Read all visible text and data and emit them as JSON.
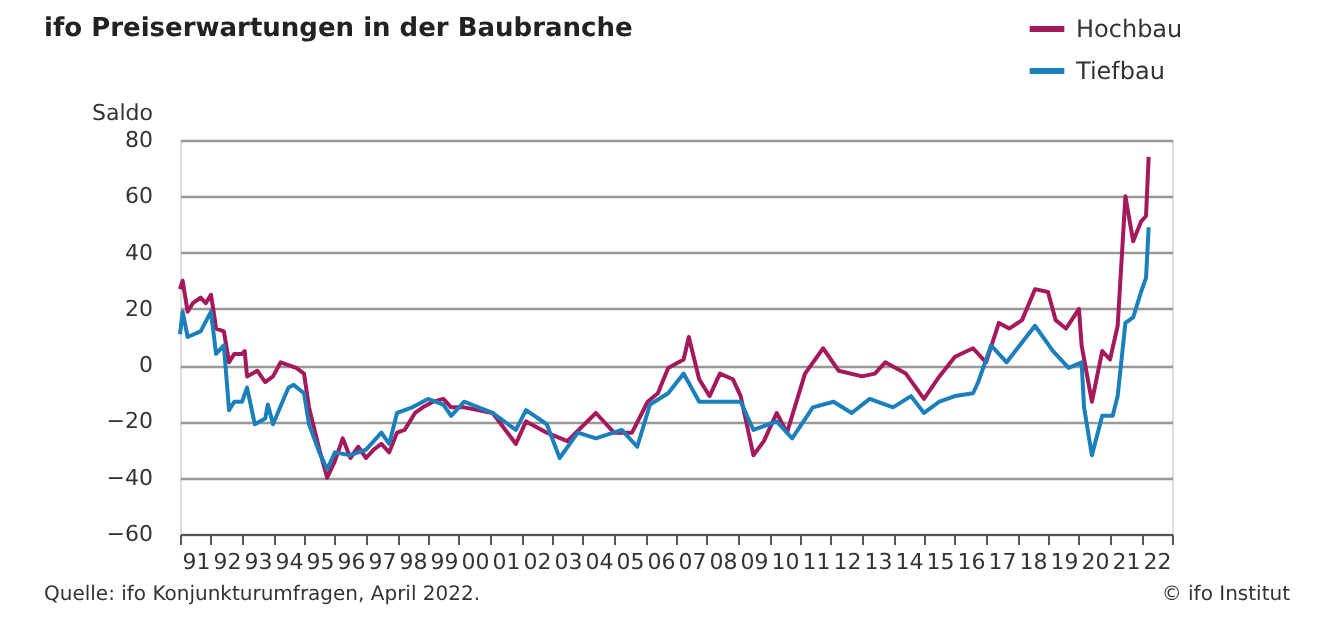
{
  "chart_data": {
    "type": "line",
    "title": "ifo Preiserwartungen in der Baubranche",
    "ylabel": "Saldo",
    "annotations": [
      "Quelle: ifo Konjunkturumfragen, April 2022.",
      "© ifo Institut"
    ],
    "series": [
      {
        "name": "Hochbau",
        "color": "#a3195b",
        "x": [
          "1991-01",
          "1991-02",
          "1991-04",
          "1991-06",
          "1991-09",
          "1991-11",
          "1992-01",
          "1992-02",
          "1992-03",
          "1992-06",
          "1992-08",
          "1992-10",
          "1993-01",
          "1993-02",
          "1993-03",
          "1993-07",
          "1993-10",
          "1994-01",
          "1994-04",
          "1994-10",
          "1995-01",
          "1995-03",
          "1995-07",
          "1995-10",
          "1996-01",
          "1996-04",
          "1996-07",
          "1996-10",
          "1997-01",
          "1997-04",
          "1997-07",
          "1997-10",
          "1998-01",
          "1998-04",
          "1998-08",
          "1998-11",
          "1999-03",
          "1999-07",
          "1999-10",
          "2000-03",
          "2001-02",
          "2001-11",
          "2002-03",
          "2002-11",
          "2003-07",
          "2004-06",
          "2005-01",
          "2005-08",
          "2006-02",
          "2006-06",
          "2006-10",
          "2007-04",
          "2007-06",
          "2007-10",
          "2008-02",
          "2008-06",
          "2008-11",
          "2009-02",
          "2009-07",
          "2009-11",
          "2010-04",
          "2010-08",
          "2011-03",
          "2011-10",
          "2012-04",
          "2013-01",
          "2013-06",
          "2013-10",
          "2014-06",
          "2015-01",
          "2015-07",
          "2016-01",
          "2016-08",
          "2017-01",
          "2017-06",
          "2017-10",
          "2018-03",
          "2018-08",
          "2019-01",
          "2019-04",
          "2019-08",
          "2020-01",
          "2020-02",
          "2020-06",
          "2020-10",
          "2021-01",
          "2021-04",
          "2021-07",
          "2021-10",
          "2022-01",
          "2022-03",
          "2022-04"
        ],
        "values": [
          27,
          30,
          19,
          22,
          24,
          22,
          25,
          19,
          13,
          12,
          1,
          4,
          4,
          5,
          -4,
          -2,
          -6,
          -4,
          1,
          -1,
          -3,
          -15,
          -30,
          -40,
          -34,
          -26,
          -33,
          -29,
          -33,
          -30,
          -28,
          -31,
          -24,
          -23,
          -17,
          -15,
          -13,
          -12,
          -15,
          -15,
          -17,
          -28,
          -20,
          -24,
          -27,
          -17,
          -24,
          -24,
          -13,
          -10,
          -1,
          2,
          10,
          -5,
          -11,
          -3,
          -5,
          -11,
          -32,
          -27,
          -17,
          -24,
          -3,
          6,
          -2,
          -4,
          -3,
          1,
          -3,
          -12,
          -4,
          3,
          6,
          1,
          15,
          13,
          16,
          27,
          26,
          16,
          13,
          20,
          7,
          -13,
          5,
          2,
          14,
          60,
          44,
          51,
          53,
          74
        ]
      },
      {
        "name": "Tiefbau",
        "color": "#1a7fba",
        "x": [
          "1991-01",
          "1991-02",
          "1991-04",
          "1991-09",
          "1992-01",
          "1992-03",
          "1992-06",
          "1992-08",
          "1992-10",
          "1993-01",
          "1993-03",
          "1993-06",
          "1993-10",
          "1993-11",
          "1994-01",
          "1994-07",
          "1994-09",
          "1995-01",
          "1995-03",
          "1995-07",
          "1995-10",
          "1996-01",
          "1996-07",
          "1997-01",
          "1997-07",
          "1997-10",
          "1998-01",
          "1998-07",
          "1999-01",
          "1999-07",
          "1999-10",
          "2000-03",
          "2001-02",
          "2001-11",
          "2002-03",
          "2002-11",
          "2003-04",
          "2003-11",
          "2004-06",
          "2005-04",
          "2005-10",
          "2006-03",
          "2006-10",
          "2007-04",
          "2007-10",
          "2008-08",
          "2009-02",
          "2009-07",
          "2010-04",
          "2010-10",
          "2011-06",
          "2012-02",
          "2012-09",
          "2013-04",
          "2014-01",
          "2014-08",
          "2015-01",
          "2015-07",
          "2016-01",
          "2016-08",
          "2016-10",
          "2017-03",
          "2017-09",
          "2018-02",
          "2018-08",
          "2019-03",
          "2019-09",
          "2020-02",
          "2020-03",
          "2020-06",
          "2020-10",
          "2021-02",
          "2021-04",
          "2021-07",
          "2021-10",
          "2022-01",
          "2022-03",
          "2022-04"
        ],
        "values": [
          11,
          19,
          10,
          12,
          19,
          4,
          7,
          -16,
          -13,
          -13,
          -8,
          -21,
          -19,
          -14,
          -21,
          -8,
          -7,
          -10,
          -21,
          -31,
          -37,
          -31,
          -32,
          -30,
          -24,
          -28,
          -17,
          -15,
          -12,
          -14,
          -18,
          -13,
          -17,
          -23,
          -16,
          -21,
          -33,
          -24,
          -26,
          -23,
          -29,
          -14,
          -10,
          -3,
          -13,
          -13,
          -13,
          -23,
          -20,
          -26,
          -15,
          -13,
          -17,
          -12,
          -15,
          -11,
          -17,
          -13,
          -11,
          -10,
          -6,
          7,
          1,
          7,
          14,
          5,
          -1,
          1,
          -15,
          -32,
          -18,
          -18,
          -11,
          15,
          17,
          26,
          31,
          49
        ]
      }
    ],
    "xlim": [
      "1991-01-01",
      "2023-01-01"
    ],
    "xticks": [
      {
        "value": "1991-01-01",
        "label": null
      },
      {
        "value": "1992-01-01",
        "label": null
      },
      {
        "value": "1993-01-01",
        "label": null
      },
      {
        "value": "1994-01-01",
        "label": null
      },
      {
        "value": "1995-01-01",
        "label": null
      },
      {
        "value": "1996-01-01",
        "label": null
      },
      {
        "value": "1997-01-01",
        "label": null
      },
      {
        "value": "1998-01-01",
        "label": null
      },
      {
        "value": "1999-01-01",
        "label": null
      },
      {
        "value": "2000-01-01",
        "label": null
      },
      {
        "value": "2001-01-01",
        "label": null
      },
      {
        "value": "2002-01-01",
        "label": null
      },
      {
        "value": "2003-01-01",
        "label": null
      },
      {
        "value": "2004-01-01",
        "label": null
      },
      {
        "value": "2005-01-01",
        "label": null
      },
      {
        "value": "2006-01-01",
        "label": null
      },
      {
        "value": "2007-01-01",
        "label": null
      },
      {
        "value": "2008-01-01",
        "label": null
      },
      {
        "value": "2009-01-01",
        "label": null
      },
      {
        "value": "2010-01-01",
        "label": null
      },
      {
        "value": "2011-01-01",
        "label": null
      },
      {
        "value": "2012-01-01",
        "label": null
      },
      {
        "value": "2013-01-01",
        "label": null
      },
      {
        "value": "2014-01-01",
        "label": null
      },
      {
        "value": "2015-01-01",
        "label": null
      },
      {
        "value": "2016-01-01",
        "label": null
      },
      {
        "value": "2017-01-01",
        "label": null
      },
      {
        "value": "2018-01-01",
        "label": null
      },
      {
        "value": "2019-01-01",
        "label": null
      },
      {
        "value": "2020-01-01",
        "label": null
      },
      {
        "value": "2021-01-01",
        "label": null
      },
      {
        "value": "2022-01-01",
        "label": null
      },
      {
        "value": "2023-01-01",
        "label": null
      },
      {
        "value": "1991-07-02",
        "label": "91"
      },
      {
        "value": "1992-07-02",
        "label": "92"
      },
      {
        "value": "1993-07-02",
        "label": "93"
      },
      {
        "value": "1994-07-02",
        "label": "94"
      },
      {
        "value": "1995-07-02",
        "label": "95"
      },
      {
        "value": "1996-07-02",
        "label": "96"
      },
      {
        "value": "1997-07-02",
        "label": "97"
      },
      {
        "value": "1998-07-02",
        "label": "98"
      },
      {
        "value": "1999-07-02",
        "label": "99"
      },
      {
        "value": "2000-07-02",
        "label": "00"
      },
      {
        "value": "2001-07-02",
        "label": "01"
      },
      {
        "value": "2002-07-02",
        "label": "02"
      },
      {
        "value": "2003-07-02",
        "label": "03"
      },
      {
        "value": "2004-07-02",
        "label": "04"
      },
      {
        "value": "2005-07-02",
        "label": "05"
      },
      {
        "value": "2006-07-02",
        "label": "06"
      },
      {
        "value": "2007-07-02",
        "label": "07"
      },
      {
        "value": "2008-07-02",
        "label": "08"
      },
      {
        "value": "2009-07-02",
        "label": "09"
      },
      {
        "value": "2010-07-02",
        "label": "10"
      },
      {
        "value": "2011-07-02",
        "label": "11"
      },
      {
        "value": "2012-07-02",
        "label": "12"
      },
      {
        "value": "2013-07-02",
        "label": "13"
      },
      {
        "value": "2014-07-02",
        "label": "14"
      },
      {
        "value": "2015-07-02",
        "label": "15"
      },
      {
        "value": "2016-07-02",
        "label": "16"
      },
      {
        "value": "2017-07-02",
        "label": "17"
      },
      {
        "value": "2018-07-02",
        "label": "18"
      },
      {
        "value": "2019-07-02",
        "label": "19"
      },
      {
        "value": "2020-07-02",
        "label": "20"
      },
      {
        "value": "2021-07-02",
        "label": "21"
      },
      {
        "value": "2022-07-02",
        "label": "22"
      }
    ],
    "ylim": [
      -60,
      80
    ],
    "yticks": [
      -60,
      -40,
      -20,
      0,
      20,
      40,
      60,
      80
    ],
    "grid": "y",
    "legend": "top right",
    "marker": "none",
    "line_style": "solid"
  }
}
